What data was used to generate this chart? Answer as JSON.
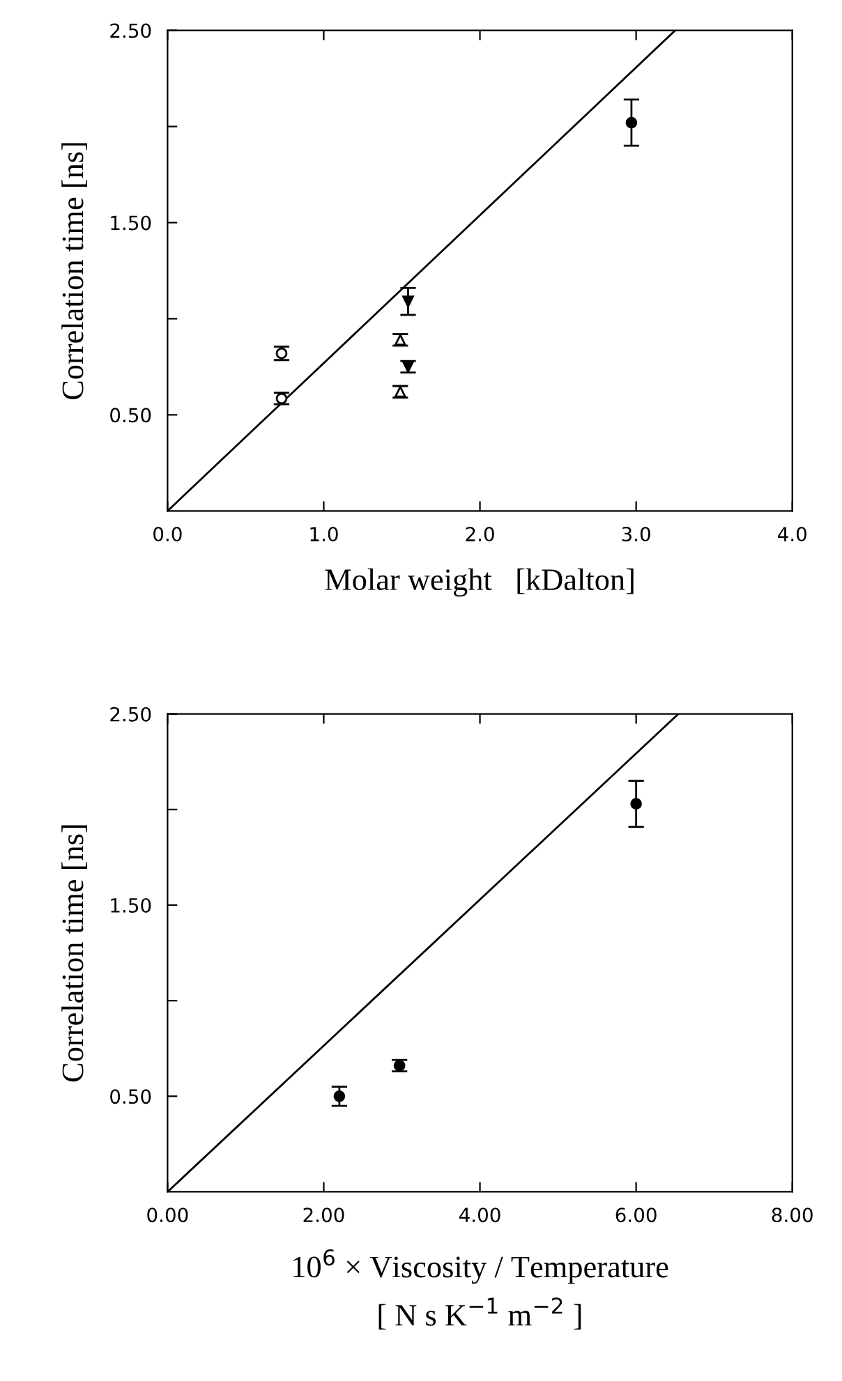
{
  "chart_data": [
    {
      "type": "scatter",
      "ylabel": "Correlation time [ns]",
      "xlabel": "Molar weight   [kDalton]",
      "xlim": [
        0,
        4
      ],
      "xticks": [
        {
          "value": 0,
          "label": "0.0"
        },
        {
          "value": 1,
          "label": "1.0"
        },
        {
          "value": 2,
          "label": "2.0"
        },
        {
          "value": 3,
          "label": "3.0"
        },
        {
          "value": 4,
          "label": "4.0"
        }
      ],
      "ylim": [
        0,
        2.5
      ],
      "yticks": [
        {
          "value": 0.5,
          "label": "0.50"
        },
        {
          "value": 1.0,
          "label": null
        },
        {
          "value": 1.5,
          "label": "1.50"
        },
        {
          "value": 2.0,
          "label": null
        },
        {
          "value": 2.5,
          "label": "2.50"
        }
      ],
      "grid": false,
      "legend": false,
      "series": [
        {
          "marker": "circle",
          "color": "#000000",
          "x": [
            0.73,
            0.73
          ],
          "values": [
            0.82,
            0.585
          ],
          "errors": [
            0.035,
            0.03
          ]
        },
        {
          "marker": "triangle",
          "color": "#000000",
          "x": [
            1.49,
            1.49
          ],
          "values": [
            0.89,
            0.62
          ],
          "errors": [
            0.03,
            0.03
          ]
        },
        {
          "marker": "triangle_down",
          "color": "#000000",
          "x": [
            1.54,
            1.54
          ],
          "values": [
            1.09,
            0.75
          ],
          "errors": [
            0.07,
            0.03
          ]
        },
        {
          "marker": "circle",
          "color": "#000000",
          "x": [
            2.97
          ],
          "values": [
            2.02
          ],
          "errors": [
            0.12
          ]
        },
        {
          "type": "line",
          "marker": "none",
          "color": "#000000",
          "x": [
            0,
            3.25
          ],
          "values": [
            0,
            2.5
          ]
        }
      ]
    },
    {
      "type": "scatter",
      "ylabel": "Correlation time [ns]",
      "xlabel": "10$^{6}$ × Viscosity / Temperature\n[ N s K$^{−1}$ m$^{−2}$ ]",
      "xlim": [
        0,
        8
      ],
      "xticks": [
        {
          "value": 0,
          "label": "0.00"
        },
        {
          "value": 2,
          "label": "2.00"
        },
        {
          "value": 4,
          "label": "4.00"
        },
        {
          "value": 6,
          "label": "6.00"
        },
        {
          "value": 8,
          "label": "8.00"
        }
      ],
      "ylim": [
        0,
        2.5
      ],
      "yticks": [
        {
          "value": 0.5,
          "label": "0.50"
        },
        {
          "value": 1.0,
          "label": null
        },
        {
          "value": 1.5,
          "label": "1.50"
        },
        {
          "value": 2.0,
          "label": null
        },
        {
          "value": 2.5,
          "label": "2.50"
        }
      ],
      "grid": false,
      "legend": false,
      "series": [
        {
          "marker": "circle",
          "color": "#000000",
          "x": [
            2.2,
            2.97,
            6.0
          ],
          "values": [
            0.5,
            0.66,
            2.03
          ],
          "errors": [
            0.05,
            0.03,
            0.12
          ]
        },
        {
          "type": "line",
          "marker": "none",
          "color": "#000000",
          "x": [
            0,
            6.54
          ],
          "values": [
            0,
            2.5
          ]
        }
      ]
    }
  ]
}
